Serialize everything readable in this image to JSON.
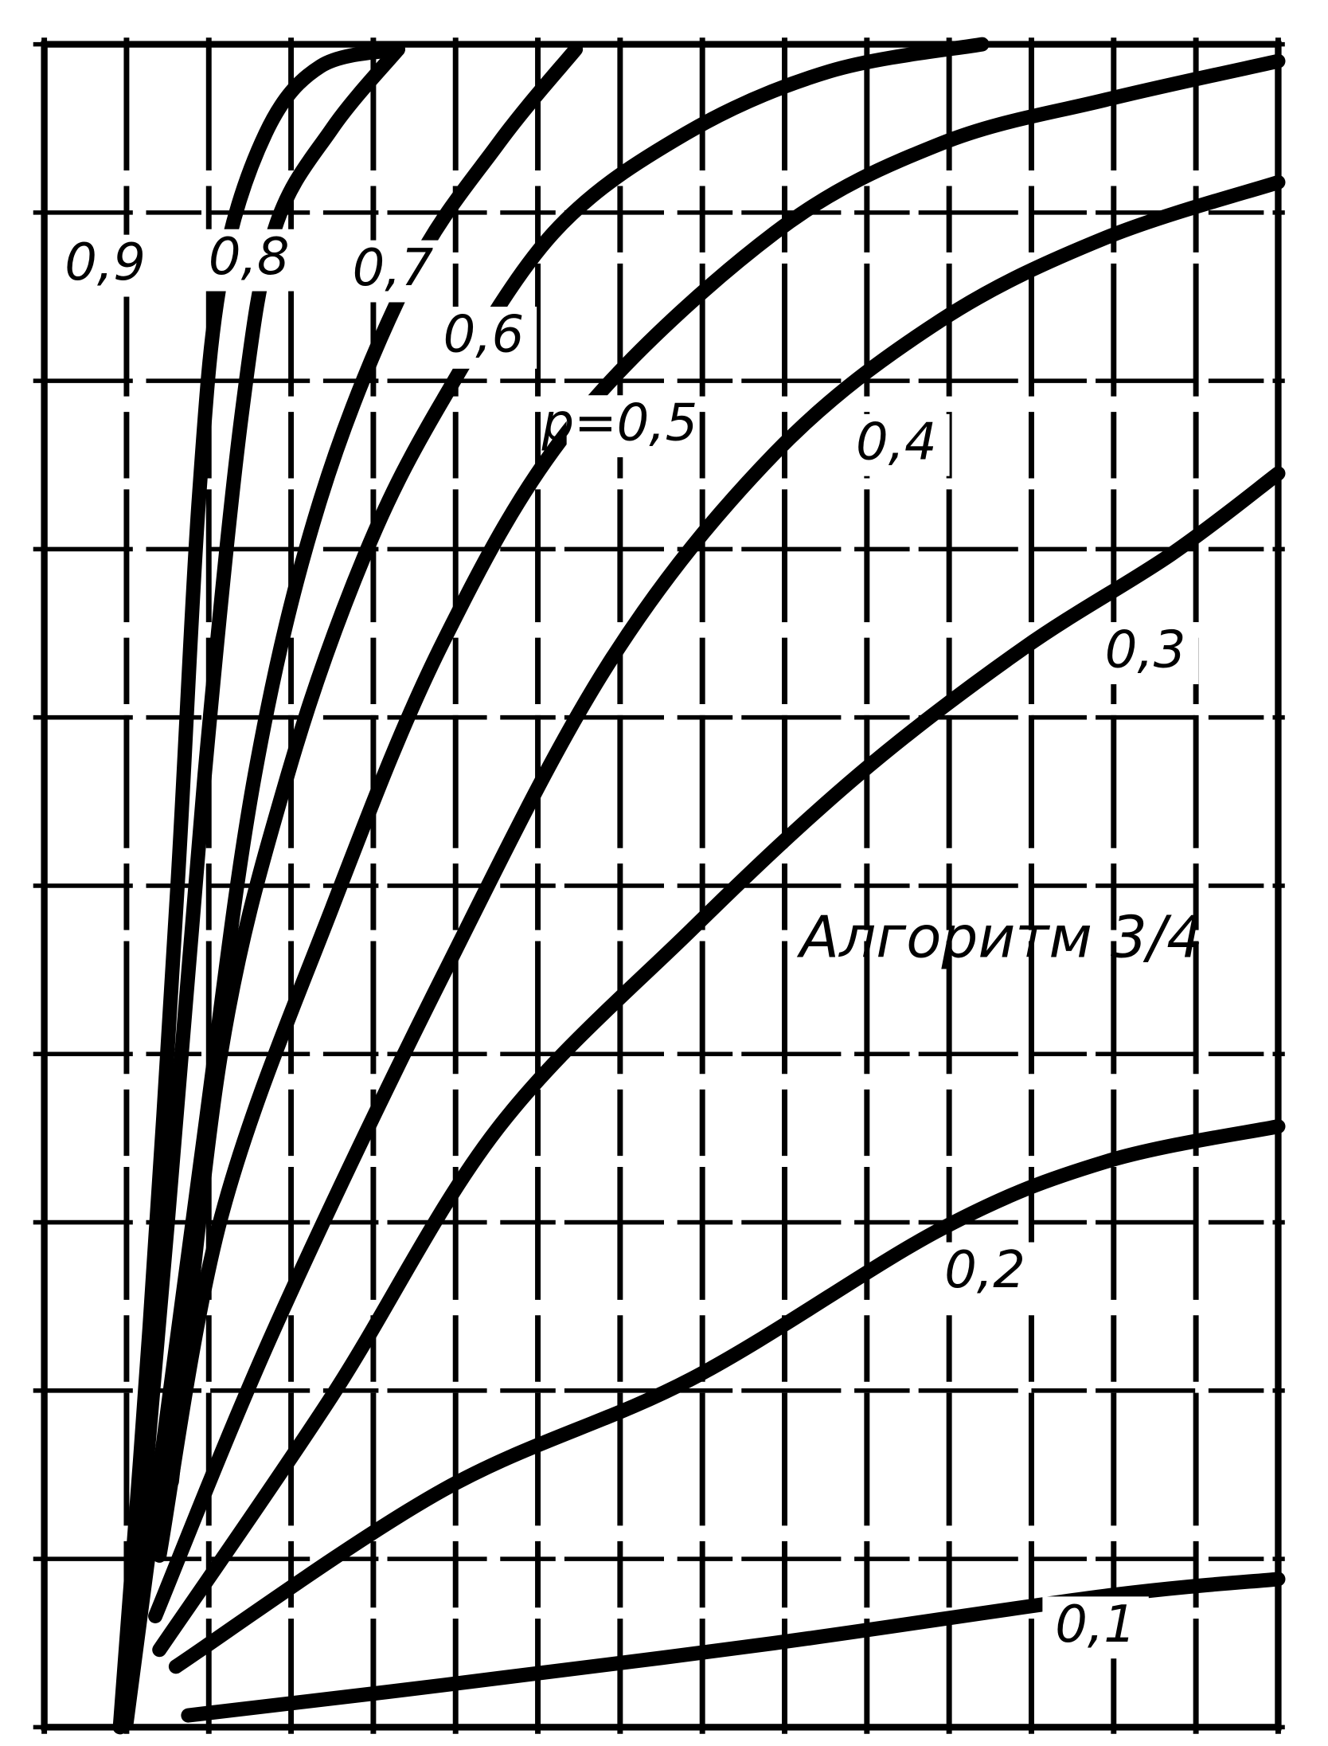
{
  "chart_data": {
    "type": "line",
    "annotation": "Алгоритм 3/4",
    "xlim": [
      0,
      15
    ],
    "ylim": [
      0,
      10
    ],
    "xticks": [
      0,
      1,
      2,
      3,
      4,
      5,
      6,
      7,
      8,
      9,
      10,
      11,
      12,
      13,
      14,
      15
    ],
    "yticks": [
      0,
      1,
      2,
      3,
      4,
      5,
      6,
      7,
      8,
      9,
      10
    ],
    "grid": true,
    "series": [
      {
        "name": "0,9",
        "color": "#000000",
        "x": [
          0.92,
          1.28,
          1.62,
          1.88,
          2.15,
          2.69,
          3.36,
          4.3
        ],
        "values": [
          0,
          2.37,
          5.0,
          7.3,
          8.62,
          9.47,
          9.87,
          9.97
        ]
      },
      {
        "name": "0,8",
        "color": "#000000",
        "x": [
          0.97,
          1.5,
          1.95,
          2.4,
          2.8,
          3.5,
          4.3
        ],
        "values": [
          0.03,
          3.0,
          5.66,
          7.8,
          8.9,
          9.5,
          9.97
        ]
      },
      {
        "name": "0,7",
        "color": "#000000",
        "x": [
          1.0,
          1.9,
          2.56,
          3.36,
          4.44,
          5.52,
          6.46
        ],
        "values": [
          0.03,
          3.36,
          5.66,
          7.3,
          8.62,
          9.41,
          9.97
        ]
      },
      {
        "name": "0,6",
        "color": "#000000",
        "x": [
          1.55,
          2.15,
          2.96,
          3.9,
          4.85,
          6.19,
          7.8,
          9.55,
          11.4
        ],
        "values": [
          1.46,
          4.01,
          5.66,
          6.97,
          7.89,
          8.88,
          9.47,
          9.84,
          10
        ]
      },
      {
        "name": "p=0,5",
        "color": "#000000",
        "x": [
          1.4,
          2.15,
          3.5,
          4.85,
          6.46,
          8.88,
          10.9,
          12.9,
          15
        ],
        "values": [
          1.02,
          3.03,
          4.87,
          6.45,
          7.76,
          8.88,
          9.41,
          9.67,
          9.9
        ]
      },
      {
        "name": "0,4",
        "color": "#000000",
        "x": [
          1.35,
          2.8,
          4.85,
          6.86,
          8.88,
          10.9,
          12.9,
          15
        ],
        "values": [
          0.66,
          2.37,
          4.47,
          6.32,
          7.57,
          8.36,
          8.85,
          9.18
        ]
      },
      {
        "name": "0,3",
        "color": "#000000",
        "x": [
          1.4,
          3.5,
          5.5,
          7.87,
          9.9,
          11.9,
          13.7,
          15
        ],
        "values": [
          0.46,
          1.97,
          3.55,
          4.74,
          5.66,
          6.41,
          6.97,
          7.45
        ]
      },
      {
        "name": "0,2",
        "color": "#000000",
        "x": [
          1.6,
          4.85,
          7.87,
          10.9,
          12.9,
          15
        ],
        "values": [
          0.36,
          1.41,
          2.07,
          2.96,
          3.36,
          3.57
        ]
      },
      {
        "name": "0,1",
        "color": "#000000",
        "x": [
          1.75,
          4.85,
          8.88,
          12.9,
          15
        ],
        "values": [
          0.07,
          0.25,
          0.5,
          0.78,
          0.88
        ]
      }
    ]
  }
}
